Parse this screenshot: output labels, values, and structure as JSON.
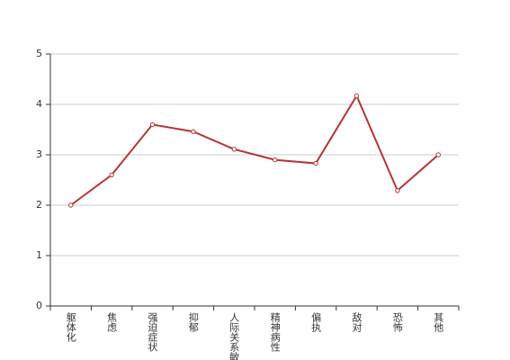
{
  "chart_data": {
    "type": "line",
    "categories": [
      "躯体化",
      "焦虑",
      "强迫症状",
      "抑郁",
      "人际关系敏感",
      "精神病性",
      "偏执",
      "敌对",
      "恐怖",
      "其他"
    ],
    "values": [
      2.0,
      2.6,
      3.6,
      3.46,
      3.11,
      2.9,
      2.83,
      4.17,
      2.29,
      3.0
    ],
    "color": "#b83232",
    "ylim": [
      0,
      5
    ],
    "yticks": [
      0,
      1,
      2,
      3,
      4,
      5
    ],
    "grid": true
  }
}
